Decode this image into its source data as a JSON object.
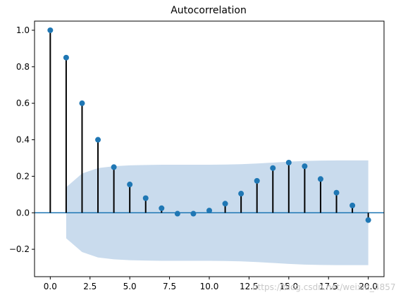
{
  "chart_data": {
    "type": "stem",
    "title": "Autocorrelation",
    "xlabel": "",
    "ylabel": "",
    "xlim": [
      -0.99,
      20.99
    ],
    "ylim": [
      -0.35,
      1.05
    ],
    "x_ticks": [
      0.0,
      2.5,
      5.0,
      7.5,
      10.0,
      12.5,
      15.0,
      17.5,
      20.0
    ],
    "x_tick_labels": [
      "0.0",
      "2.5",
      "5.0",
      "7.5",
      "10.0",
      "12.5",
      "15.0",
      "17.5",
      "20.0"
    ],
    "y_ticks": [
      -0.2,
      0.0,
      0.2,
      0.4,
      0.6,
      0.8,
      1.0
    ],
    "y_tick_labels": [
      "−0.2",
      "0.0",
      "0.2",
      "0.4",
      "0.6",
      "0.8",
      "1.0"
    ],
    "lags": [
      0,
      1,
      2,
      3,
      4,
      5,
      6,
      7,
      8,
      9,
      10,
      11,
      12,
      13,
      14,
      15,
      16,
      17,
      18,
      19,
      20
    ],
    "acf": [
      1.0,
      0.85,
      0.6,
      0.4,
      0.25,
      0.155,
      0.08,
      0.025,
      -0.005,
      -0.005,
      0.012,
      0.05,
      0.105,
      0.175,
      0.245,
      0.275,
      0.255,
      0.185,
      0.11,
      0.04,
      -0.04
    ],
    "confidence_band": {
      "lags": [
        1,
        2,
        3,
        4,
        5,
        6,
        7,
        8,
        9,
        10,
        11,
        12,
        13,
        14,
        15,
        16,
        17,
        18,
        19,
        20
      ],
      "upper": [
        0.14,
        0.215,
        0.245,
        0.255,
        0.26,
        0.262,
        0.263,
        0.263,
        0.263,
        0.263,
        0.264,
        0.266,
        0.27,
        0.275,
        0.28,
        0.284,
        0.286,
        0.287,
        0.287,
        0.287
      ],
      "lower": [
        -0.14,
        -0.215,
        -0.245,
        -0.255,
        -0.26,
        -0.262,
        -0.263,
        -0.263,
        -0.263,
        -0.263,
        -0.264,
        -0.266,
        -0.27,
        -0.275,
        -0.28,
        -0.284,
        -0.286,
        -0.287,
        -0.287,
        -0.287
      ]
    },
    "colors": {
      "marker": "#1f77b4",
      "stem": "#000000",
      "zero_line": "#1f77b4",
      "band": "#c6d9ec"
    },
    "grid": false,
    "legend": "none"
  },
  "watermark": "https://blog.csdn.net/weixin_4857"
}
